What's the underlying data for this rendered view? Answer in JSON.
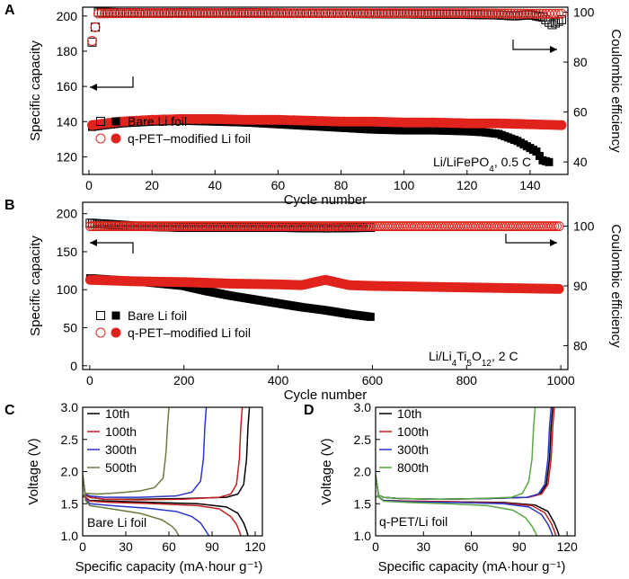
{
  "chart_data": [
    {
      "panel": "A",
      "type": "scatter",
      "xlabel": "Cycle number",
      "ylabel": "Specific capacity",
      "y2label": "Coulombic efficiency",
      "xlim": [
        -2,
        152
      ],
      "ylim": [
        110,
        205
      ],
      "y2lim": [
        35,
        102
      ],
      "xticks": [
        0,
        20,
        40,
        60,
        80,
        100,
        120,
        140
      ],
      "yticks": [
        120,
        140,
        160,
        180,
        200
      ],
      "y2ticks": [
        40,
        60,
        80,
        100
      ],
      "annotation": "Li/LiFePO4, 0.5 C",
      "legend": [
        "Bare Li foil",
        "q-PET–modified Li foil"
      ],
      "series": [
        {
          "name": "Bare Li foil",
          "axis": "capacity",
          "marker": "filled-square",
          "color": "#000000",
          "x": [
            1,
            5,
            10,
            20,
            30,
            40,
            50,
            60,
            70,
            80,
            90,
            100,
            110,
            120,
            125,
            130,
            133,
            136,
            139,
            142,
            144,
            146
          ],
          "y": [
            137,
            138,
            139,
            140,
            140.5,
            140,
            139.5,
            138.5,
            137.5,
            136.5,
            135.5,
            135,
            135,
            134.5,
            134,
            133,
            131,
            129,
            126,
            123,
            118,
            117
          ]
        },
        {
          "name": "q-PET–modified Li foil",
          "axis": "capacity",
          "marker": "filled-circle",
          "color": "#e0231c",
          "x": [
            1,
            5,
            10,
            20,
            30,
            40,
            50,
            60,
            70,
            80,
            90,
            100,
            110,
            120,
            130,
            140,
            150
          ],
          "y": [
            138,
            139,
            140,
            141,
            141.5,
            141.5,
            141,
            141,
            140.5,
            140,
            140,
            139.5,
            139.5,
            139,
            139,
            138.5,
            138
          ]
        },
        {
          "name": "Bare Li foil",
          "axis": "coulombic",
          "marker": "open-square",
          "color": "#000000",
          "x": [
            1,
            3,
            10,
            20,
            30,
            40,
            50,
            60,
            70,
            80,
            90,
            100,
            110,
            120,
            130,
            135,
            140,
            144,
            147,
            150
          ],
          "y": [
            88,
            100,
            99.8,
            99.7,
            99.8,
            99.7,
            99.8,
            99.7,
            99.6,
            99.5,
            99.4,
            99.3,
            99.2,
            99.1,
            98.9,
            98.5,
            99,
            98,
            95,
            97
          ]
        },
        {
          "name": "q-PET–modified Li foil",
          "axis": "coulombic",
          "marker": "open-circle",
          "color": "#e0231c",
          "x": [
            1,
            3,
            10,
            20,
            30,
            40,
            50,
            60,
            70,
            80,
            90,
            100,
            110,
            120,
            130,
            140,
            150
          ],
          "y": [
            88.5,
            99.5,
            99.6,
            99.6,
            99.6,
            99.6,
            99.6,
            99.6,
            99.6,
            99.6,
            99.6,
            99.6,
            99.6,
            99.6,
            99.5,
            99.4,
            99.4
          ]
        }
      ]
    },
    {
      "panel": "B",
      "type": "scatter",
      "xlabel": "Cycle number",
      "ylabel": "Specific capacity",
      "y2label": "Coulombic efficiency",
      "xlim": [
        -15,
        1015
      ],
      "ylim": [
        -5,
        215
      ],
      "y2lim": [
        76,
        104
      ],
      "xticks": [
        0,
        200,
        400,
        600,
        800,
        1000
      ],
      "yticks": [
        0,
        50,
        100,
        150,
        200
      ],
      "y2ticks": [
        80,
        90,
        100
      ],
      "annotation": "Li/Li4Ti5O12, 2 C",
      "legend": [
        "Bare Li foil",
        "q-PET–modified Li foil"
      ],
      "series": [
        {
          "name": "Bare Li foil",
          "axis": "capacity",
          "marker": "filled-square",
          "color": "#000000",
          "x": [
            1,
            50,
            100,
            150,
            200,
            250,
            300,
            350,
            400,
            450,
            500,
            550,
            600
          ],
          "y": [
            115,
            113,
            111,
            108,
            105,
            98,
            92,
            87,
            82,
            77,
            73,
            68,
            64
          ]
        },
        {
          "name": "q-PET–modified Li foil",
          "axis": "capacity",
          "marker": "filled-circle",
          "color": "#e0231c",
          "x": [
            1,
            100,
            200,
            300,
            400,
            450,
            500,
            550,
            600,
            700,
            800,
            900,
            1000
          ],
          "y": [
            113,
            111,
            110,
            108,
            107,
            106,
            113,
            106,
            105,
            104,
            103,
            102,
            101
          ]
        },
        {
          "name": "Bare Li foil",
          "axis": "coulombic",
          "marker": "open-square",
          "color": "#000000",
          "x": [
            1,
            100,
            200,
            300,
            400,
            500,
            600
          ],
          "y": [
            100.5,
            100,
            99.8,
            99.8,
            99.8,
            99.7,
            99.8
          ]
        },
        {
          "name": "q-PET–modified Li foil",
          "axis": "coulombic",
          "marker": "open-circle",
          "color": "#e0231c",
          "x": [
            1,
            100,
            200,
            300,
            400,
            500,
            600,
            700,
            800,
            900,
            1000
          ],
          "y": [
            100,
            100,
            100,
            100,
            100,
            100,
            100,
            100,
            100,
            100,
            100
          ]
        }
      ]
    },
    {
      "panel": "C",
      "type": "line",
      "xlabel": "Specific capacity (mA·hour g⁻¹)",
      "ylabel": "Voltage (V)",
      "xlim": [
        0,
        125
      ],
      "ylim": [
        1.0,
        3.0
      ],
      "xticks": [
        0,
        30,
        60,
        90,
        120
      ],
      "yticks": [
        1.0,
        1.5,
        2.0,
        2.5,
        3.0
      ],
      "annotation": "Bare Li foil",
      "series": [
        {
          "name": "10th",
          "color": "#000000",
          "charge_x": [
            0,
            2,
            5,
            15,
            40,
            70,
            100,
            108,
            112,
            114,
            115,
            116
          ],
          "charge_y": [
            1.6,
            1.63,
            1.6,
            1.57,
            1.57,
            1.58,
            1.6,
            1.65,
            1.8,
            2.2,
            2.7,
            3.0
          ],
          "discharge_x": [
            0,
            2,
            5,
            20,
            50,
            80,
            100,
            108,
            112,
            114,
            115
          ],
          "discharge_y": [
            1.95,
            1.6,
            1.55,
            1.54,
            1.52,
            1.5,
            1.45,
            1.35,
            1.2,
            1.08,
            1.0
          ]
        },
        {
          "name": "100th",
          "color": "#c02020",
          "charge_x": [
            0,
            2,
            5,
            15,
            40,
            70,
            95,
            103,
            107,
            109,
            110,
            111
          ],
          "charge_y": [
            1.6,
            1.63,
            1.6,
            1.57,
            1.56,
            1.57,
            1.6,
            1.65,
            1.8,
            2.2,
            2.7,
            3.0
          ],
          "discharge_x": [
            0,
            2,
            5,
            20,
            50,
            80,
            95,
            103,
            107,
            109,
            110
          ],
          "discharge_y": [
            1.95,
            1.6,
            1.54,
            1.52,
            1.5,
            1.47,
            1.42,
            1.3,
            1.18,
            1.07,
            1.0
          ]
        },
        {
          "name": "300th",
          "color": "#2b35c8",
          "charge_x": [
            0,
            2,
            5,
            15,
            40,
            65,
            76,
            82,
            84,
            85,
            86
          ],
          "charge_y": [
            1.62,
            1.65,
            1.62,
            1.6,
            1.6,
            1.62,
            1.68,
            1.85,
            2.2,
            2.7,
            3.0
          ],
          "discharge_x": [
            0,
            2,
            5,
            20,
            45,
            65,
            76,
            82,
            85,
            87,
            88
          ],
          "discharge_y": [
            1.95,
            1.58,
            1.5,
            1.47,
            1.43,
            1.38,
            1.3,
            1.2,
            1.1,
            1.03,
            1.0
          ]
        },
        {
          "name": "500th",
          "color": "#6b7c3e",
          "charge_x": [
            0,
            3,
            10,
            25,
            40,
            50,
            56,
            58,
            59,
            60
          ],
          "charge_y": [
            1.62,
            1.66,
            1.65,
            1.67,
            1.7,
            1.75,
            1.9,
            2.3,
            2.7,
            3.0
          ],
          "discharge_x": [
            0,
            2,
            5,
            20,
            40,
            55,
            62,
            65,
            66,
            67
          ],
          "discharge_y": [
            1.95,
            1.55,
            1.47,
            1.42,
            1.35,
            1.25,
            1.15,
            1.08,
            1.03,
            1.0
          ]
        }
      ]
    },
    {
      "panel": "D",
      "type": "line",
      "xlabel": "Specific capacity (mA·hour g⁻¹)",
      "ylabel": "Voltage (V)",
      "xlim": [
        0,
        125
      ],
      "ylim": [
        1.0,
        3.0
      ],
      "xticks": [
        0,
        30,
        60,
        90,
        120
      ],
      "yticks": [
        1.0,
        1.5,
        2.0,
        2.5,
        3.0
      ],
      "annotation": "q-PET/Li foil",
      "series": [
        {
          "name": "10th",
          "color": "#000000",
          "charge_x": [
            0,
            2,
            5,
            15,
            40,
            70,
            95,
            103,
            107,
            109,
            110,
            111
          ],
          "charge_y": [
            1.6,
            1.63,
            1.6,
            1.58,
            1.57,
            1.58,
            1.6,
            1.65,
            1.8,
            2.2,
            2.7,
            3.0
          ],
          "discharge_x": [
            0,
            2,
            5,
            20,
            50,
            80,
            100,
            108,
            112,
            114,
            115
          ],
          "discharge_y": [
            1.95,
            1.6,
            1.55,
            1.54,
            1.53,
            1.52,
            1.48,
            1.38,
            1.2,
            1.08,
            1.0
          ]
        },
        {
          "name": "100th",
          "color": "#c02020",
          "charge_x": [
            0,
            2,
            5,
            15,
            40,
            70,
            96,
            104,
            108,
            110,
            111,
            112
          ],
          "charge_y": [
            1.6,
            1.63,
            1.6,
            1.58,
            1.57,
            1.58,
            1.6,
            1.65,
            1.8,
            2.2,
            2.7,
            3.0
          ],
          "discharge_x": [
            0,
            2,
            5,
            20,
            50,
            80,
            98,
            106,
            110,
            112,
            113
          ],
          "discharge_y": [
            1.95,
            1.6,
            1.55,
            1.54,
            1.53,
            1.51,
            1.47,
            1.36,
            1.2,
            1.08,
            1.0
          ]
        },
        {
          "name": "300th",
          "color": "#2b35c8",
          "charge_x": [
            0,
            2,
            5,
            15,
            40,
            70,
            95,
            102,
            106,
            108,
            109,
            110
          ],
          "charge_y": [
            1.6,
            1.63,
            1.6,
            1.58,
            1.57,
            1.58,
            1.6,
            1.65,
            1.8,
            2.2,
            2.7,
            3.0
          ],
          "discharge_x": [
            0,
            2,
            5,
            20,
            50,
            80,
            96,
            104,
            108,
            110,
            111
          ],
          "discharge_y": [
            1.95,
            1.6,
            1.55,
            1.53,
            1.52,
            1.5,
            1.45,
            1.33,
            1.18,
            1.07,
            1.0
          ]
        },
        {
          "name": "800th",
          "color": "#58a842",
          "charge_x": [
            0,
            2,
            5,
            15,
            40,
            65,
            85,
            92,
            96,
            98,
            99,
            100
          ],
          "charge_y": [
            1.6,
            1.63,
            1.6,
            1.58,
            1.57,
            1.58,
            1.6,
            1.66,
            1.85,
            2.2,
            2.7,
            3.0
          ],
          "discharge_x": [
            0,
            2,
            5,
            20,
            45,
            70,
            86,
            94,
            98,
            100,
            101
          ],
          "discharge_y": [
            1.95,
            1.6,
            1.54,
            1.52,
            1.5,
            1.47,
            1.4,
            1.28,
            1.15,
            1.06,
            1.0
          ]
        }
      ]
    }
  ]
}
